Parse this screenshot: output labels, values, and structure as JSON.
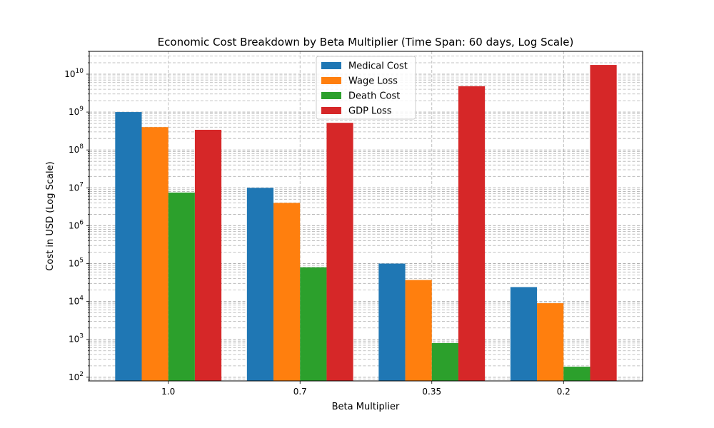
{
  "chart_data": {
    "type": "bar",
    "title": "Economic Cost Breakdown by Beta Multiplier (Time Span: 60 days, Log Scale)",
    "xlabel": "Beta Multiplier",
    "ylabel": "Cost in USD (Log Scale)",
    "yscale": "log",
    "ylim": [
      80,
      40000000000
    ],
    "grid": true,
    "legend_position": "upper-center",
    "categories": [
      "1.0",
      "0.7",
      "0.35",
      "0.2"
    ],
    "y_ticks": [
      {
        "base": "10",
        "exp": "2",
        "value": 100
      },
      {
        "base": "10",
        "exp": "3",
        "value": 1000
      },
      {
        "base": "10",
        "exp": "4",
        "value": 10000
      },
      {
        "base": "10",
        "exp": "5",
        "value": 100000
      },
      {
        "base": "10",
        "exp": "6",
        "value": 1000000
      },
      {
        "base": "10",
        "exp": "7",
        "value": 10000000
      },
      {
        "base": "10",
        "exp": "8",
        "value": 100000000
      },
      {
        "base": "10",
        "exp": "9",
        "value": 1000000000
      },
      {
        "base": "10",
        "exp": "10",
        "value": 10000000000
      }
    ],
    "series": [
      {
        "name": "Medical Cost",
        "color": "#1f77b4",
        "values": [
          1000000000,
          10000000,
          100000,
          24000
        ]
      },
      {
        "name": "Wage Loss",
        "color": "#ff7f0e",
        "values": [
          400000000,
          4000000,
          37000,
          9000
        ]
      },
      {
        "name": "Death Cost",
        "color": "#2ca02c",
        "values": [
          7500000,
          80000,
          800,
          190
        ]
      },
      {
        "name": "GDP Loss",
        "color": "#d62728",
        "values": [
          340000000,
          520000000,
          4800000000,
          17500000000
        ]
      }
    ]
  }
}
